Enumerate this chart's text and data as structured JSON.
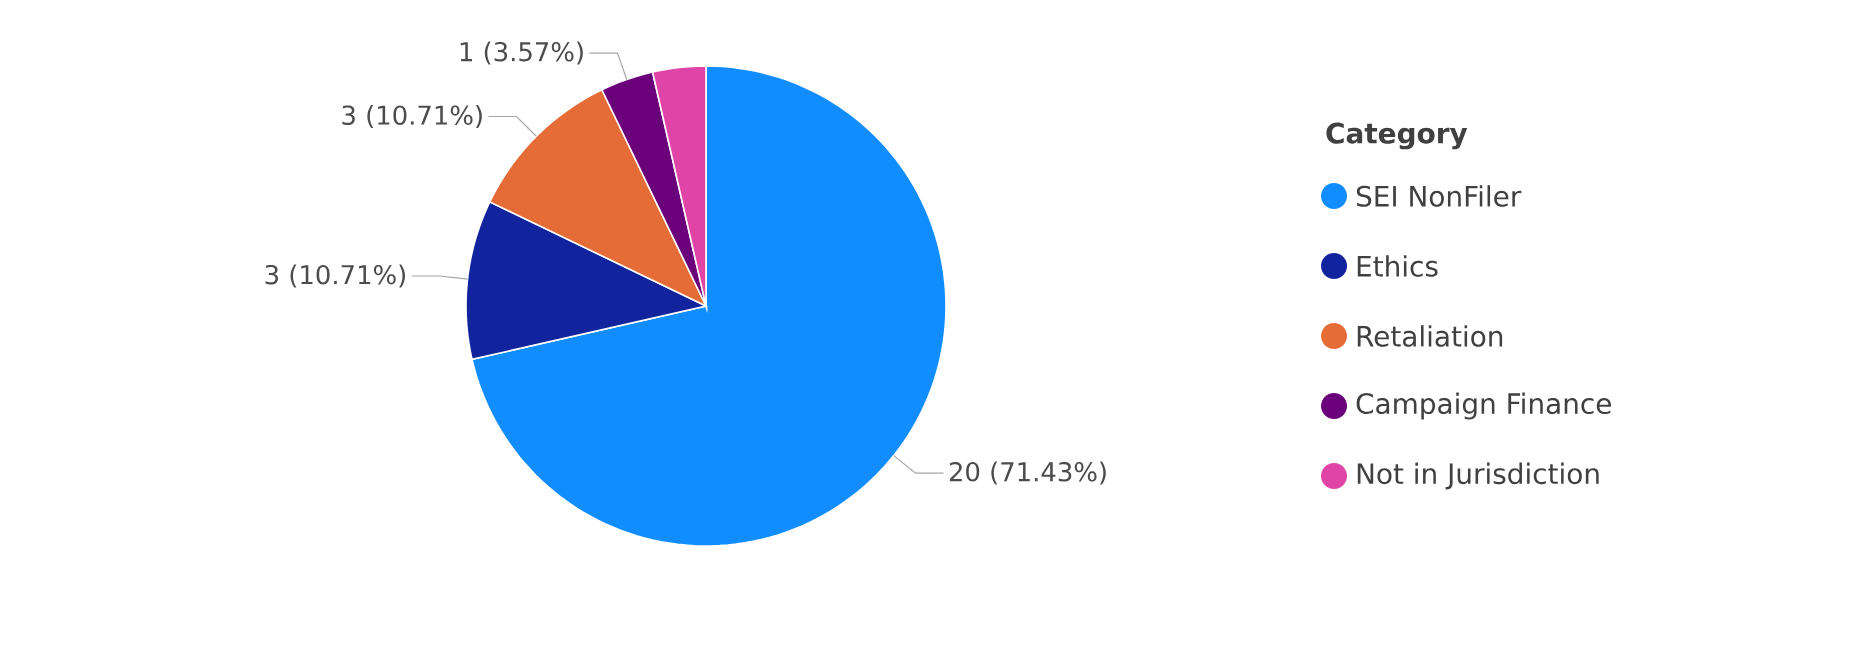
{
  "chart_data": {
    "type": "pie",
    "legend_title": "Category",
    "categories": [
      "SEI NonFiler",
      "Ethics",
      "Retaliation",
      "Campaign Finance",
      "Not in Jurisdiction"
    ],
    "values": [
      20,
      3,
      3,
      1,
      1
    ],
    "colors": [
      "#118dff",
      "#12239e",
      "#e66c37",
      "#6b007b",
      "#e044a7"
    ],
    "value_labels": [
      "20 (71.43%)",
      "3 (10.71%)",
      "3 (10.71%)",
      "1 (3.57%)",
      null
    ],
    "legend": "right"
  }
}
